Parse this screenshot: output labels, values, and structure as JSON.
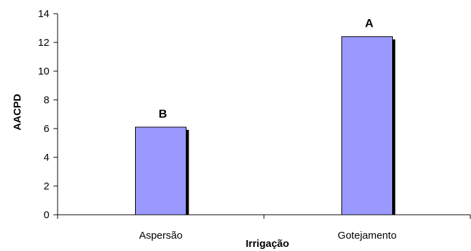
{
  "chart_data": {
    "type": "bar",
    "title": "",
    "xlabel": "Irrigação",
    "ylabel": "AACPD",
    "categories": [
      "Aspersão",
      "Gotejamento"
    ],
    "values": [
      6.1,
      12.4
    ],
    "data_labels": [
      "B",
      "A"
    ],
    "ylim": [
      0,
      14
    ],
    "yticks": [
      0,
      2,
      4,
      6,
      8,
      10,
      12,
      14
    ],
    "grid": false,
    "legend": "none",
    "colors": {
      "bar": "#9999ff",
      "bar_stroke": "#000000",
      "shadow": "#000000"
    }
  }
}
